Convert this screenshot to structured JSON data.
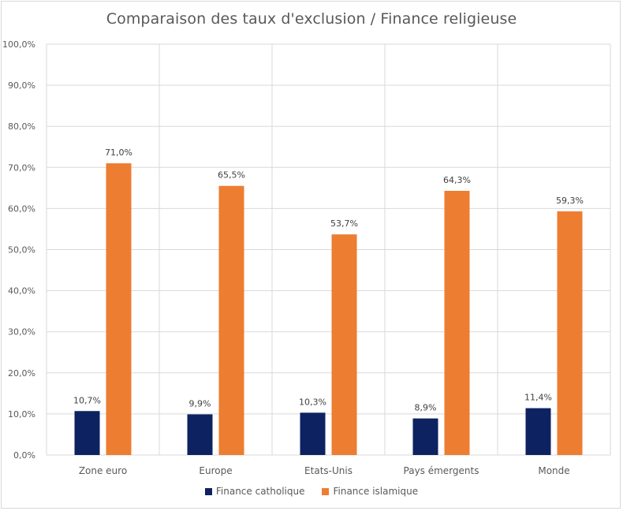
{
  "chart_data": {
    "type": "bar",
    "title": "Comparaison des taux d'exclusion / Finance religieuse",
    "categories": [
      "Zone euro",
      "Europe",
      "Etats-Unis",
      "Pays émergents",
      "Monde"
    ],
    "series": [
      {
        "name": "Finance catholique",
        "color": "#0d2260",
        "values": [
          10.7,
          9.9,
          10.3,
          8.9,
          11.4
        ],
        "labels": [
          "10,7%",
          "9,9%",
          "10,3%",
          "8,9%",
          "11,4%"
        ]
      },
      {
        "name": "Finance islamique",
        "color": "#ed7d31",
        "values": [
          71.0,
          65.5,
          53.7,
          64.3,
          59.3
        ],
        "labels": [
          "71,0%",
          "65,5%",
          "53,7%",
          "64,3%",
          "59,3%"
        ]
      }
    ],
    "ylim": [
      0,
      100
    ],
    "yticks": [
      0,
      10,
      20,
      30,
      40,
      50,
      60,
      70,
      80,
      90,
      100
    ],
    "ytick_labels": [
      "0,0%",
      "10,0%",
      "20,0%",
      "30,0%",
      "40,0%",
      "50,0%",
      "60,0%",
      "70,0%",
      "80,0%",
      "90,0%",
      "100,0%"
    ],
    "grid": true,
    "legend_position": "bottom",
    "xlabel": "",
    "ylabel": ""
  }
}
